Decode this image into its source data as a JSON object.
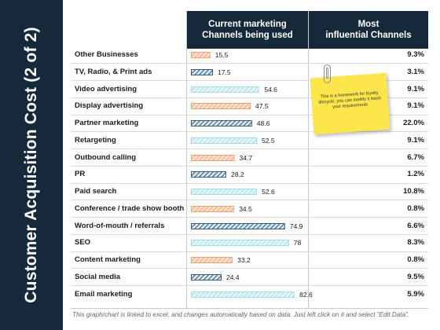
{
  "slide": {
    "title": "Customer Acquisition Cost (2 of 2)",
    "footer": "This graph/chart is linked to excel, and changes automatically based on data. Just left click on it and select “Edit Data”."
  },
  "table": {
    "header_bars": [
      "Current marketing",
      "Channels being used"
    ],
    "header_pct": [
      "Most",
      "influential Channels"
    ]
  },
  "note": {
    "text": "This is a framework for loyalty lifecycle, you can modify it basis your requirements"
  },
  "colors": {
    "navy": "#15293a",
    "salmon": "#f0a070",
    "steel_blue": "#2f5f7f",
    "light_cyan": "#9fdde4",
    "note_yellow": "#fde64b"
  },
  "chart_data": {
    "type": "bar",
    "orientation": "horizontal",
    "categories": [
      "Other Businesses",
      "TV, Radio, & Print ads",
      "Video advertising",
      "Display advertising",
      "Partner marketing",
      "Retargeting",
      "Outbound calling",
      "PR",
      "Paid search",
      "Conference / trade show booth",
      "Word-of-mouth / referrals",
      "SEO",
      "Content marketing",
      "Social media",
      "Email marketing"
    ],
    "values": [
      15.5,
      17.5,
      54.6,
      47.5,
      48.6,
      52.5,
      34.7,
      28.2,
      52.6,
      34.5,
      74.9,
      78,
      33.2,
      24.4,
      82.6
    ],
    "bar_labels": [
      "15.5",
      "17.5",
      "54.6",
      "47.5",
      "48.6",
      "52.5",
      "34.7",
      "28.2",
      "52.6",
      "34.5",
      "74.9",
      "78",
      "33.2",
      "24.4",
      "82.6"
    ],
    "bar_styles": [
      "salmon",
      "steel_blue",
      "light_cyan",
      "salmon",
      "steel_blue",
      "light_cyan",
      "salmon",
      "steel_blue",
      "light_cyan",
      "salmon",
      "steel_blue",
      "light_cyan",
      "salmon",
      "steel_blue",
      "light_cyan"
    ],
    "most_influential": [
      "9.3%",
      "3.1%",
      "9.1%",
      "9.1%",
      "22.0%",
      "9.1%",
      "6.7%",
      "1.2%",
      "10.8%",
      "0.8%",
      "6.6%",
      "8.3%",
      "0.8%",
      "9.5%",
      "5.9%"
    ],
    "xlim": [
      0,
      100
    ],
    "grid": false
  }
}
